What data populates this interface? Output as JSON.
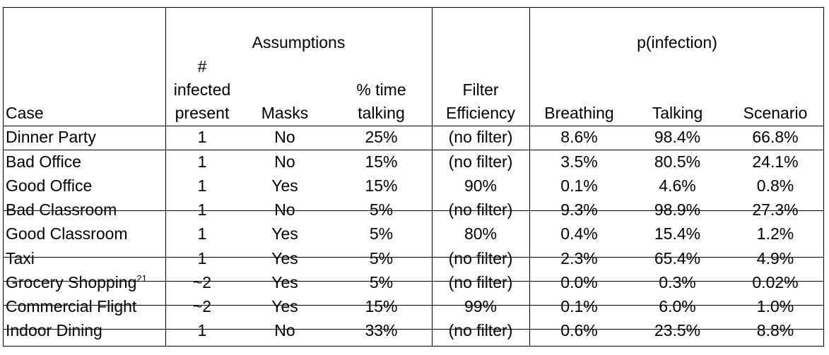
{
  "group_headers": {
    "assumptions": "Assumptions",
    "p_infection": "p(infection)"
  },
  "columns": {
    "case": "Case",
    "infected_line1": "#",
    "infected_line2": "infected",
    "infected_line3": "present",
    "masks": "Masks",
    "time_line1": "% time",
    "time_line2": "talking",
    "filter_line1": "Filter",
    "filter_line2": "Efficiency",
    "breathing": "Breathing",
    "talking": "Talking",
    "scenario": "Scenario"
  },
  "rows": [
    {
      "case": "Dinner Party",
      "sup": "",
      "infected": "1",
      "masks": "No",
      "time_talking": "25%",
      "filter": "(no filter)",
      "breathing": "8.6%",
      "talking": "98.4%",
      "scenario": "66.8%"
    },
    {
      "case": "Bad Office",
      "sup": "",
      "infected": "1",
      "masks": "No",
      "time_talking": "15%",
      "filter": "(no filter)",
      "breathing": "3.5%",
      "talking": "80.5%",
      "scenario": "24.1%"
    },
    {
      "case": "Good Office",
      "sup": "",
      "infected": "1",
      "masks": "Yes",
      "time_talking": "15%",
      "filter": "90%",
      "breathing": "0.1%",
      "talking": "4.6%",
      "scenario": "0.8%"
    },
    {
      "case": "Bad Classroom",
      "sup": "",
      "infected": "1",
      "masks": "No",
      "time_talking": "5%",
      "filter": "(no filter)",
      "breathing": "9.3%",
      "talking": "98.9%",
      "scenario": "27.3%"
    },
    {
      "case": "Good Classroom",
      "sup": "",
      "infected": "1",
      "masks": "Yes",
      "time_talking": "5%",
      "filter": "80%",
      "breathing": "0.4%",
      "talking": "15.4%",
      "scenario": "1.2%"
    },
    {
      "case": "Taxi",
      "sup": "",
      "infected": "1",
      "masks": "Yes",
      "time_talking": "5%",
      "filter": "(no filter)",
      "breathing": "2.3%",
      "talking": "65.4%",
      "scenario": "4.9%"
    },
    {
      "case": "Grocery Shopping",
      "sup": "21",
      "infected": "~2",
      "masks": "Yes",
      "time_talking": "5%",
      "filter": "(no filter)",
      "breathing": "0.0%",
      "talking": "0.3%",
      "scenario": "0.02%"
    },
    {
      "case": "Commercial Flight",
      "sup": "",
      "infected": "~2",
      "masks": "Yes",
      "time_talking": "15%",
      "filter": "99%",
      "breathing": "0.1%",
      "talking": "6.0%",
      "scenario": "1.0%"
    },
    {
      "case": "Indoor Dining",
      "sup": "",
      "infected": "1",
      "masks": "No",
      "time_talking": "33%",
      "filter": "(no filter)",
      "breathing": "0.6%",
      "talking": "23.5%",
      "scenario": "8.8%"
    }
  ]
}
